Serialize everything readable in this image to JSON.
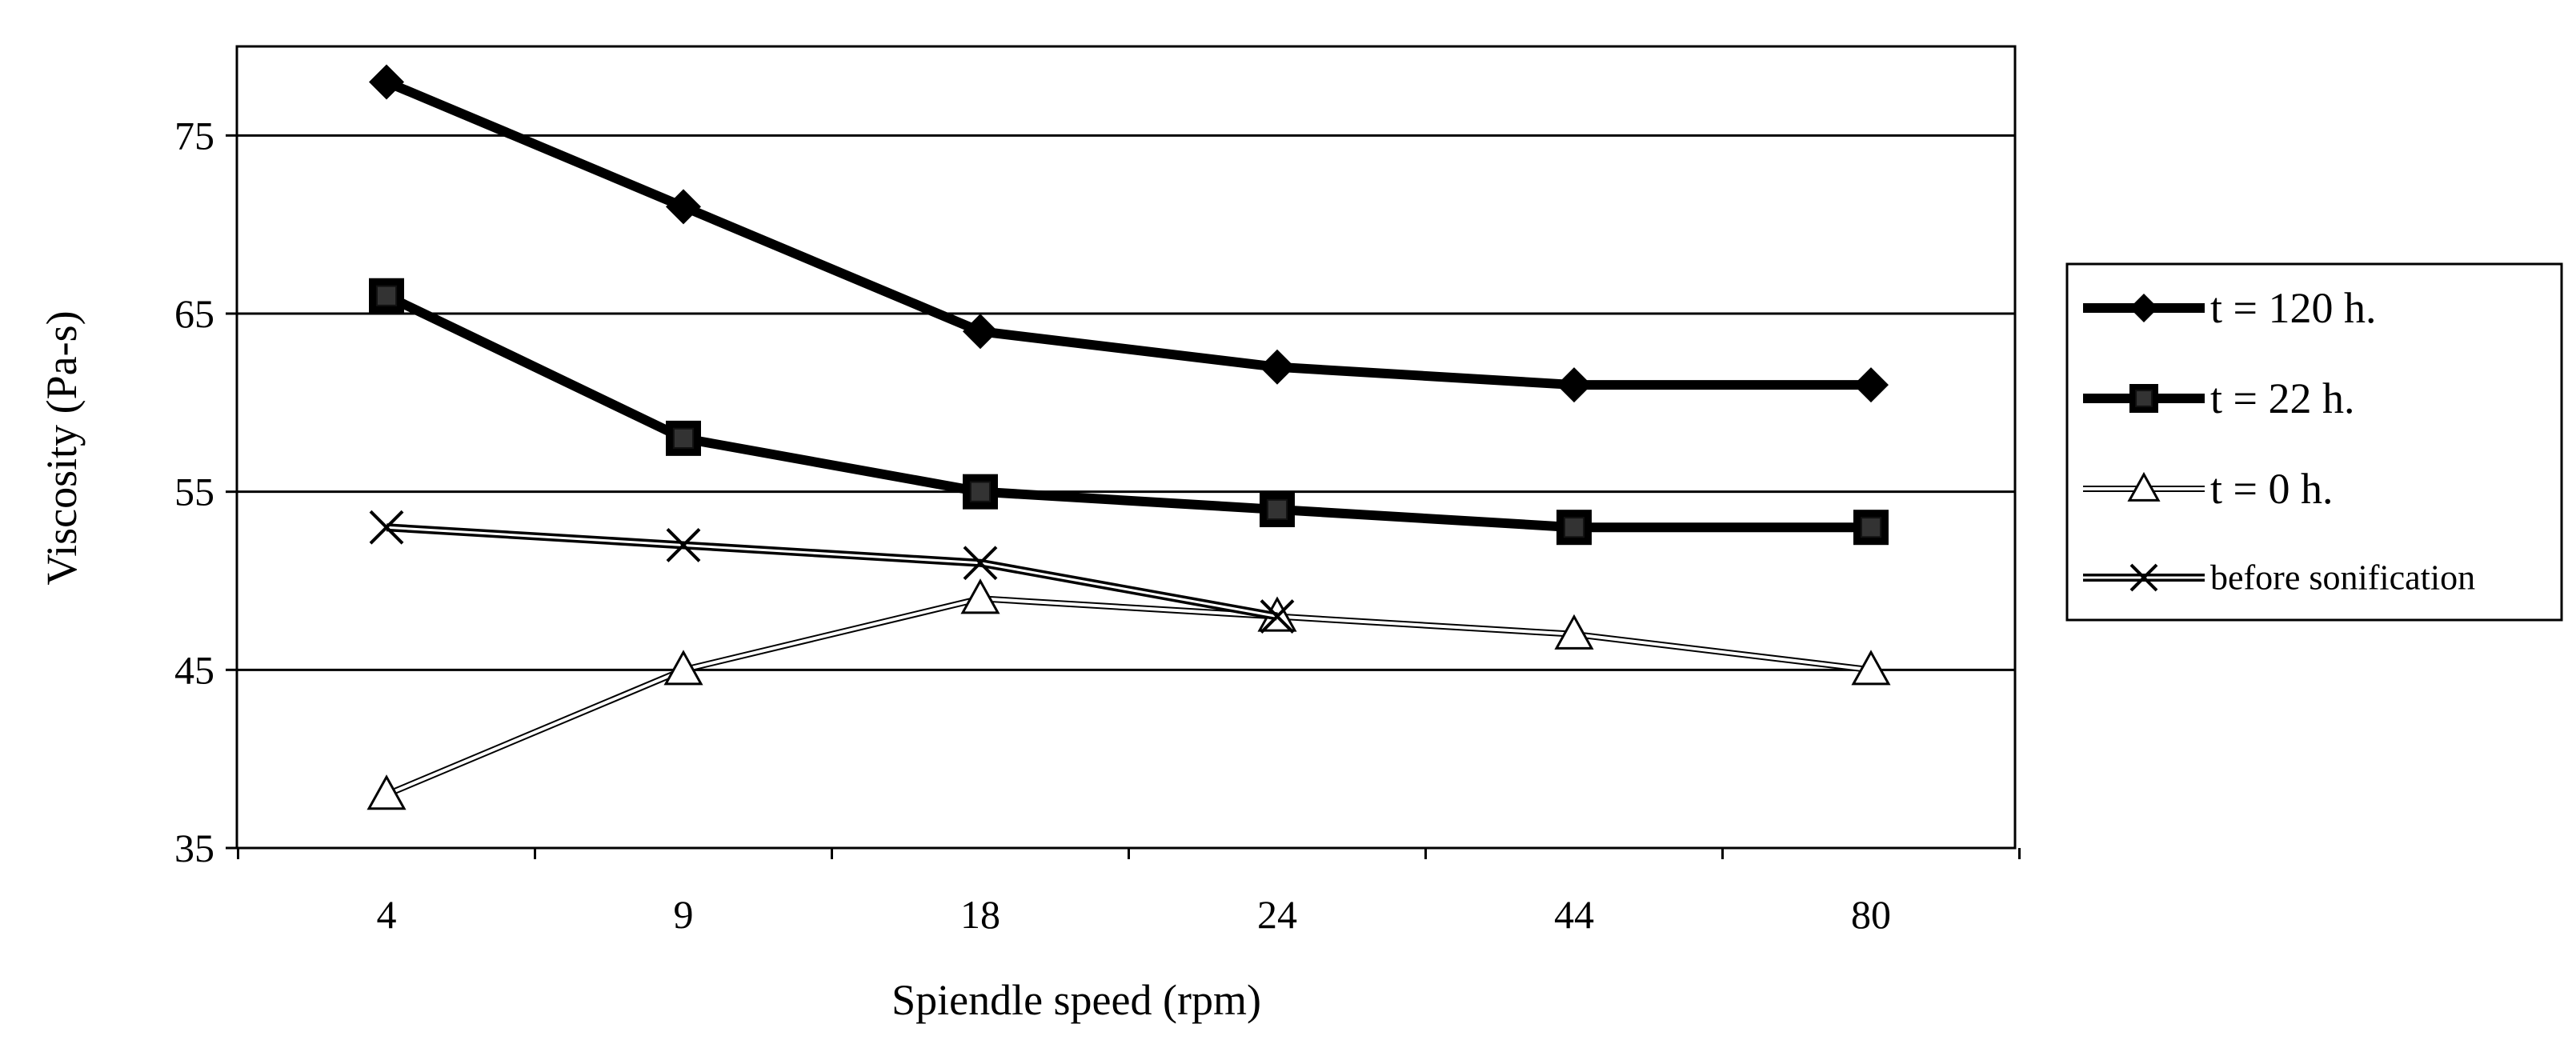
{
  "chart_data": {
    "type": "line",
    "title": "",
    "xlabel": "Spiendle speed (rpm)",
    "ylabel": "Viscosity (Pa-s)",
    "categories": [
      "4",
      "9",
      "18",
      "24",
      "44",
      "80"
    ],
    "ylim": [
      35,
      80
    ],
    "yticks": [
      "35",
      "45",
      "55",
      "65",
      "75"
    ],
    "grid": "horizontal",
    "legend_position": "right",
    "series": [
      {
        "name": "t = 120 h.",
        "marker": "diamond",
        "style": "solid-bold",
        "color": "#000000",
        "values": [
          78,
          71,
          64,
          62,
          61,
          61
        ]
      },
      {
        "name": "t = 22 h.",
        "marker": "square",
        "style": "solid-bold",
        "color": "#000000",
        "values": [
          66,
          58,
          55,
          54,
          53,
          53
        ]
      },
      {
        "name": "t = 0 h.",
        "marker": "triangle-open",
        "style": "double-thin",
        "color": "#000000",
        "values": [
          38,
          45,
          49,
          48,
          47,
          45
        ]
      },
      {
        "name": "before sonification",
        "marker": "x",
        "style": "double-medium",
        "color": "#000000",
        "values": [
          53,
          52,
          51,
          48,
          null,
          null
        ]
      }
    ]
  }
}
